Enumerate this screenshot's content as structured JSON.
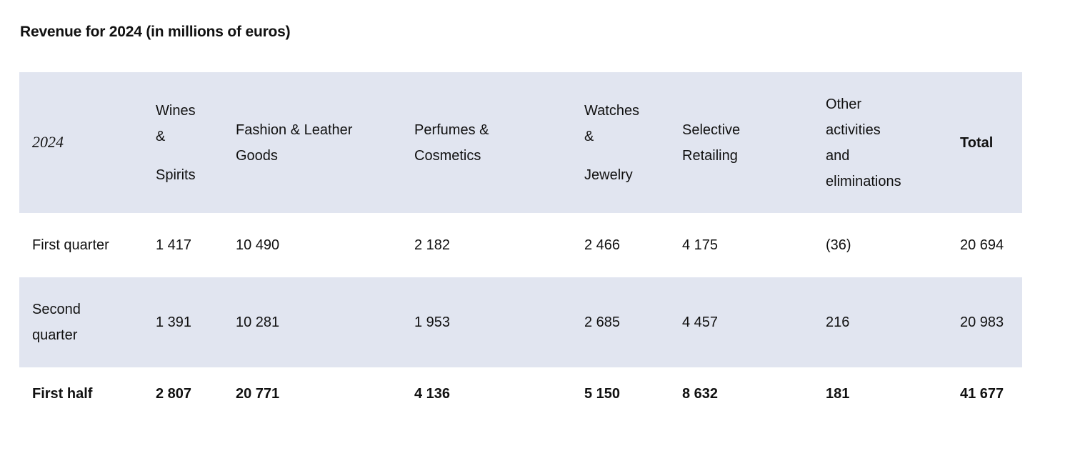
{
  "title": "Revenue for 2024 (in millions of euros)",
  "table": {
    "header": {
      "year": "2024",
      "wines": [
        "Wines",
        "&",
        "Spirits"
      ],
      "fashion": [
        "Fashion & Leather",
        "Goods"
      ],
      "perfumes": [
        "Perfumes &",
        "Cosmetics"
      ],
      "watches": [
        "Watches",
        "&",
        "Jewelry"
      ],
      "selective": [
        "Selective",
        "Retailing"
      ],
      "other": [
        "Other",
        "activities",
        "and",
        "eliminations"
      ],
      "total": "Total"
    },
    "rows": [
      {
        "label": "First quarter",
        "values": [
          "1 417",
          "10 490",
          "2 182",
          "2 466",
          "4 175",
          "(36)",
          "20 694"
        ]
      },
      {
        "label_lines": [
          "Second",
          "quarter"
        ],
        "values": [
          "1 391",
          "10 281",
          "1 953",
          "2 685",
          "4 457",
          "216",
          "20 983"
        ]
      },
      {
        "label": "First half",
        "values": [
          "2 807",
          "20 771",
          "4 136",
          "5 150",
          "8 632",
          "181",
          "41 677"
        ]
      }
    ]
  },
  "colors": {
    "band_background": "#e1e5f0",
    "text": "#111111"
  }
}
